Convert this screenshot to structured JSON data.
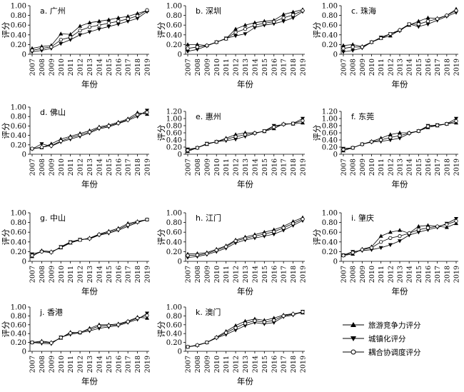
{
  "figure": {
    "legend": [
      {
        "key": "competitiveness",
        "label": "旅游竞争力评分",
        "marker": "triangle-up"
      },
      {
        "key": "urbanization",
        "label": "城镇化评分",
        "marker": "triangle-down"
      },
      {
        "key": "coupling",
        "label": "耦合协调度评分",
        "marker": "circle-open"
      }
    ]
  },
  "chart_data": [
    {
      "type": "line",
      "title": "a. 广州",
      "xlabel": "年份",
      "ylabel": "评分",
      "ylim": [
        0,
        1.0
      ],
      "yticks": [
        "0",
        "0.20",
        "0.40",
        "0.60",
        "0.80",
        "1.00"
      ],
      "x": [
        "2007",
        "2008",
        "2009",
        "2010",
        "2011",
        "2012",
        "2013",
        "2014",
        "2015",
        "2016",
        "2017",
        "2018",
        "2019"
      ],
      "series": [
        {
          "name": "旅游竞争力评分",
          "values": [
            0.12,
            0.16,
            0.18,
            0.42,
            0.41,
            0.58,
            0.65,
            0.68,
            0.71,
            0.75,
            0.78,
            0.84,
            0.9
          ]
        },
        {
          "name": "城镇化评分",
          "values": [
            0.05,
            0.08,
            0.12,
            0.22,
            0.3,
            0.4,
            0.46,
            0.52,
            0.57,
            0.62,
            0.68,
            0.74,
            0.88
          ]
        },
        {
          "name": "耦合协调度评分",
          "values": [
            0.08,
            0.12,
            0.15,
            0.3,
            0.35,
            0.49,
            0.56,
            0.6,
            0.64,
            0.68,
            0.73,
            0.79,
            0.91
          ]
        }
      ]
    },
    {
      "type": "line",
      "title": "b. 深圳",
      "xlabel": "年份",
      "ylabel": "评分",
      "ylim": [
        0,
        1.0
      ],
      "yticks": [
        "0",
        "0.20",
        "0.40",
        "0.60",
        "0.80",
        "1.00"
      ],
      "x": [
        "2007",
        "2008",
        "2009",
        "2010",
        "2011",
        "2012",
        "2013",
        "2014",
        "2015",
        "2016",
        "2017",
        "2018",
        "2019"
      ],
      "series": [
        {
          "name": "旅游竞争力评分",
          "values": [
            0.2,
            0.2,
            0.18,
            0.25,
            0.32,
            0.52,
            0.6,
            0.65,
            0.68,
            0.7,
            0.82,
            0.87,
            0.92
          ]
        },
        {
          "name": "城镇化评分",
          "values": [
            0.06,
            0.1,
            0.17,
            0.25,
            0.33,
            0.38,
            0.42,
            0.55,
            0.6,
            0.63,
            0.68,
            0.75,
            0.88
          ]
        },
        {
          "name": "耦合协调度评分",
          "values": [
            0.12,
            0.15,
            0.18,
            0.25,
            0.32,
            0.45,
            0.52,
            0.6,
            0.64,
            0.67,
            0.75,
            0.81,
            0.9
          ]
        }
      ]
    },
    {
      "type": "line",
      "title": "c. 珠海",
      "xlabel": "年份",
      "ylabel": "评分",
      "ylim": [
        0,
        1.0
      ],
      "yticks": [
        "0",
        "0.20",
        "0.40",
        "0.60",
        "0.80",
        "1.00"
      ],
      "x": [
        "2007",
        "2008",
        "2009",
        "2010",
        "2011",
        "2012",
        "2013",
        "2014",
        "2015",
        "2016",
        "2017",
        "2018",
        "2019"
      ],
      "series": [
        {
          "name": "旅游竞争力评分",
          "values": [
            0.18,
            0.2,
            0.16,
            0.25,
            0.33,
            0.38,
            0.5,
            0.6,
            0.68,
            0.75,
            0.74,
            0.8,
            0.93
          ]
        },
        {
          "name": "城镇化评分",
          "values": [
            0.05,
            0.08,
            0.13,
            0.25,
            0.35,
            0.42,
            0.48,
            0.62,
            0.57,
            0.62,
            0.7,
            0.78,
            0.86
          ]
        },
        {
          "name": "耦合协调度评分",
          "values": [
            0.12,
            0.15,
            0.15,
            0.25,
            0.33,
            0.42,
            0.5,
            0.62,
            0.62,
            0.68,
            0.73,
            0.8,
            0.9
          ]
        }
      ]
    },
    {
      "type": "line",
      "title": "d. 佛山",
      "xlabel": "年份",
      "ylabel": "评分",
      "ylim": [
        0,
        1.0
      ],
      "yticks": [
        "0",
        "0.20",
        "0.40",
        "0.60",
        "0.80",
        "1.00"
      ],
      "x": [
        "2007",
        "2008",
        "2009",
        "2010",
        "2011",
        "2012",
        "2013",
        "2014",
        "2015",
        "2016",
        "2017",
        "2018",
        "2019"
      ],
      "series": [
        {
          "name": "旅游竞争力评分",
          "values": [
            0.12,
            0.14,
            0.22,
            0.32,
            0.38,
            0.44,
            0.5,
            0.58,
            0.62,
            0.68,
            0.75,
            0.88,
            0.85
          ]
        },
        {
          "name": "城镇化评分",
          "values": [
            0.11,
            0.22,
            0.17,
            0.26,
            0.32,
            0.38,
            0.45,
            0.54,
            0.58,
            0.65,
            0.72,
            0.8,
            0.93
          ]
        },
        {
          "name": "耦合协调度评分",
          "values": [
            0.12,
            0.15,
            0.18,
            0.28,
            0.35,
            0.41,
            0.47,
            0.56,
            0.6,
            0.66,
            0.73,
            0.84,
            0.89
          ]
        }
      ]
    },
    {
      "type": "line",
      "title": "e. 惠州",
      "xlabel": "年份",
      "ylabel": "评分",
      "ylim": [
        0,
        1.2
      ],
      "yticks": [
        "0",
        "0.20",
        "0.40",
        "0.60",
        "0.80",
        "1.00",
        "1.20"
      ],
      "x": [
        "2007",
        "2008",
        "2009",
        "2010",
        "2011",
        "2012",
        "2013",
        "2014",
        "2015",
        "2016",
        "2017",
        "2018",
        "2019"
      ],
      "series": [
        {
          "name": "旅游竞争力评分",
          "values": [
            0.08,
            0.18,
            0.28,
            0.35,
            0.45,
            0.55,
            0.6,
            0.6,
            0.64,
            0.72,
            0.85,
            0.85,
            0.88
          ]
        },
        {
          "name": "城镇化评分",
          "values": [
            0.14,
            0.18,
            0.3,
            0.35,
            0.38,
            0.42,
            0.5,
            0.58,
            0.65,
            0.8,
            0.83,
            0.86,
            1.0
          ]
        },
        {
          "name": "耦合协调度评分",
          "values": [
            0.11,
            0.18,
            0.29,
            0.35,
            0.42,
            0.49,
            0.55,
            0.59,
            0.65,
            0.76,
            0.84,
            0.86,
            0.94
          ]
        }
      ]
    },
    {
      "type": "line",
      "title": "f. 东莞",
      "xlabel": "年份",
      "ylabel": "评分",
      "ylim": [
        0,
        1.2
      ],
      "yticks": [
        "0",
        "0.20",
        "0.40",
        "0.60",
        "0.80",
        "1.00",
        "1.20"
      ],
      "x": [
        "2007",
        "2008",
        "2009",
        "2010",
        "2011",
        "2012",
        "2013",
        "2014",
        "2015",
        "2016",
        "2017",
        "2018",
        "2019"
      ],
      "series": [
        {
          "name": "旅游竞争力评分",
          "values": [
            0.1,
            0.18,
            0.28,
            0.36,
            0.45,
            0.55,
            0.6,
            0.6,
            0.65,
            0.75,
            0.8,
            0.85,
            0.88
          ]
        },
        {
          "name": "城镇化评分",
          "values": [
            0.16,
            0.18,
            0.28,
            0.34,
            0.36,
            0.4,
            0.45,
            0.58,
            0.65,
            0.8,
            0.82,
            0.85,
            1.0
          ]
        },
        {
          "name": "耦合协调度评分",
          "values": [
            0.13,
            0.18,
            0.28,
            0.35,
            0.4,
            0.47,
            0.52,
            0.59,
            0.65,
            0.78,
            0.81,
            0.85,
            0.93
          ]
        }
      ]
    },
    {
      "type": "line",
      "title": "g. 中山",
      "xlabel": "年份",
      "ylabel": "评分",
      "ylim": [
        0,
        1.0
      ],
      "yticks": [
        "0",
        "0.20",
        "0.40",
        "0.60",
        "0.80",
        "1.00"
      ],
      "x": [
        "2007",
        "2008",
        "2009",
        "2010",
        "2011",
        "2012",
        "2013",
        "2014",
        "2015",
        "2016",
        "2017",
        "2018",
        "2019"
      ],
      "series": [
        {
          "name": "旅游竞争力评分",
          "values": [
            0.1,
            0.22,
            0.2,
            0.28,
            0.38,
            0.44,
            0.48,
            0.56,
            0.62,
            0.68,
            0.78,
            0.82,
            0.86
          ]
        },
        {
          "name": "城镇化评分",
          "values": [
            0.15,
            0.2,
            0.18,
            0.3,
            0.4,
            0.45,
            0.46,
            0.54,
            0.58,
            0.64,
            0.72,
            0.8,
            0.86
          ]
        },
        {
          "name": "耦合协调度评分",
          "values": [
            0.12,
            0.2,
            0.19,
            0.29,
            0.39,
            0.44,
            0.47,
            0.55,
            0.6,
            0.66,
            0.75,
            0.81,
            0.86
          ]
        }
      ]
    },
    {
      "type": "line",
      "title": "h. 江门",
      "xlabel": "年份",
      "ylabel": "评分",
      "ylim": [
        0,
        1.0
      ],
      "yticks": [
        "0",
        "0.20",
        "0.40",
        "0.60",
        "0.80",
        "1.00"
      ],
      "x": [
        "2007",
        "2008",
        "2009",
        "2010",
        "2011",
        "2012",
        "2013",
        "2014",
        "2015",
        "2016",
        "2017",
        "2018",
        "2019"
      ],
      "series": [
        {
          "name": "旅游竞争力评分",
          "values": [
            0.15,
            0.16,
            0.18,
            0.25,
            0.32,
            0.44,
            0.5,
            0.55,
            0.6,
            0.65,
            0.72,
            0.82,
            0.9
          ]
        },
        {
          "name": "城镇化评分",
          "values": [
            0.08,
            0.1,
            0.14,
            0.2,
            0.27,
            0.38,
            0.44,
            0.48,
            0.52,
            0.56,
            0.64,
            0.74,
            0.84
          ]
        },
        {
          "name": "耦合协调度评分",
          "values": [
            0.12,
            0.13,
            0.16,
            0.23,
            0.3,
            0.42,
            0.47,
            0.52,
            0.56,
            0.61,
            0.69,
            0.78,
            0.87
          ]
        }
      ]
    },
    {
      "type": "line",
      "title": "i. 肇庆",
      "xlabel": "年份",
      "ylabel": "评分",
      "ylim": [
        0,
        1.0
      ],
      "yticks": [
        "0",
        "0.20",
        "0.40",
        "0.60",
        "0.80",
        "1.00"
      ],
      "x": [
        "2007",
        "2008",
        "2009",
        "2010",
        "2011",
        "2012",
        "2013",
        "2014",
        "2015",
        "2016",
        "2017",
        "2018",
        "2019"
      ],
      "series": [
        {
          "name": "旅游竞争力评分",
          "values": [
            0.12,
            0.15,
            0.25,
            0.3,
            0.52,
            0.6,
            0.64,
            0.58,
            0.72,
            0.74,
            0.72,
            0.7,
            0.78
          ]
        },
        {
          "name": "城镇化评分",
          "values": [
            0.13,
            0.2,
            0.22,
            0.24,
            0.28,
            0.34,
            0.42,
            0.54,
            0.6,
            0.65,
            0.7,
            0.78,
            0.88
          ]
        },
        {
          "name": "耦合协调度评分",
          "values": [
            0.12,
            0.18,
            0.24,
            0.28,
            0.4,
            0.48,
            0.52,
            0.58,
            0.65,
            0.69,
            0.72,
            0.76,
            0.83
          ]
        }
      ]
    },
    {
      "type": "line",
      "title": "j. 香港",
      "xlabel": "年份",
      "ylabel": "评分",
      "ylim": [
        0,
        1.0
      ],
      "yticks": [
        "0",
        "0.20",
        "0.40",
        "0.60",
        "0.80",
        "1.00"
      ],
      "x": [
        "2007",
        "2008",
        "2009",
        "2010",
        "2011",
        "2012",
        "2013",
        "2014",
        "2015",
        "2016",
        "2017",
        "2018",
        "2019"
      ],
      "series": [
        {
          "name": "旅游竞争力评分",
          "values": [
            0.2,
            0.23,
            0.2,
            0.3,
            0.43,
            0.42,
            0.52,
            0.6,
            0.6,
            0.62,
            0.68,
            0.77,
            0.75
          ]
        },
        {
          "name": "城镇化评分",
          "values": [
            0.2,
            0.18,
            0.17,
            0.32,
            0.38,
            0.42,
            0.46,
            0.52,
            0.55,
            0.58,
            0.65,
            0.72,
            0.86
          ]
        },
        {
          "name": "耦合协调度评分",
          "values": [
            0.2,
            0.21,
            0.19,
            0.31,
            0.41,
            0.43,
            0.49,
            0.57,
            0.58,
            0.6,
            0.67,
            0.75,
            0.81
          ]
        }
      ]
    },
    {
      "type": "line",
      "title": "k. 澳门",
      "xlabel": "年份",
      "ylabel": "评分",
      "ylim": [
        0,
        1.0
      ],
      "yticks": [
        "0",
        "0.20",
        "0.40",
        "0.60",
        "0.80",
        "1.00"
      ],
      "x": [
        "2007",
        "2008",
        "2009",
        "2010",
        "2011",
        "2012",
        "2013",
        "2014",
        "2015",
        "2016",
        "2017",
        "2018",
        "2019"
      ],
      "series": [
        {
          "name": "旅游竞争力评分",
          "values": [
            0.1,
            0.14,
            0.2,
            0.32,
            0.45,
            0.58,
            0.68,
            0.73,
            0.7,
            0.75,
            0.82,
            0.85,
            0.87
          ]
        },
        {
          "name": "城镇化评分",
          "values": [
            0.1,
            0.13,
            0.2,
            0.3,
            0.38,
            0.48,
            0.58,
            0.65,
            0.62,
            0.65,
            0.78,
            0.82,
            0.9
          ]
        },
        {
          "name": "耦合协调度评分",
          "values": [
            0.1,
            0.14,
            0.2,
            0.31,
            0.42,
            0.53,
            0.63,
            0.69,
            0.66,
            0.7,
            0.8,
            0.84,
            0.89
          ]
        }
      ]
    }
  ]
}
